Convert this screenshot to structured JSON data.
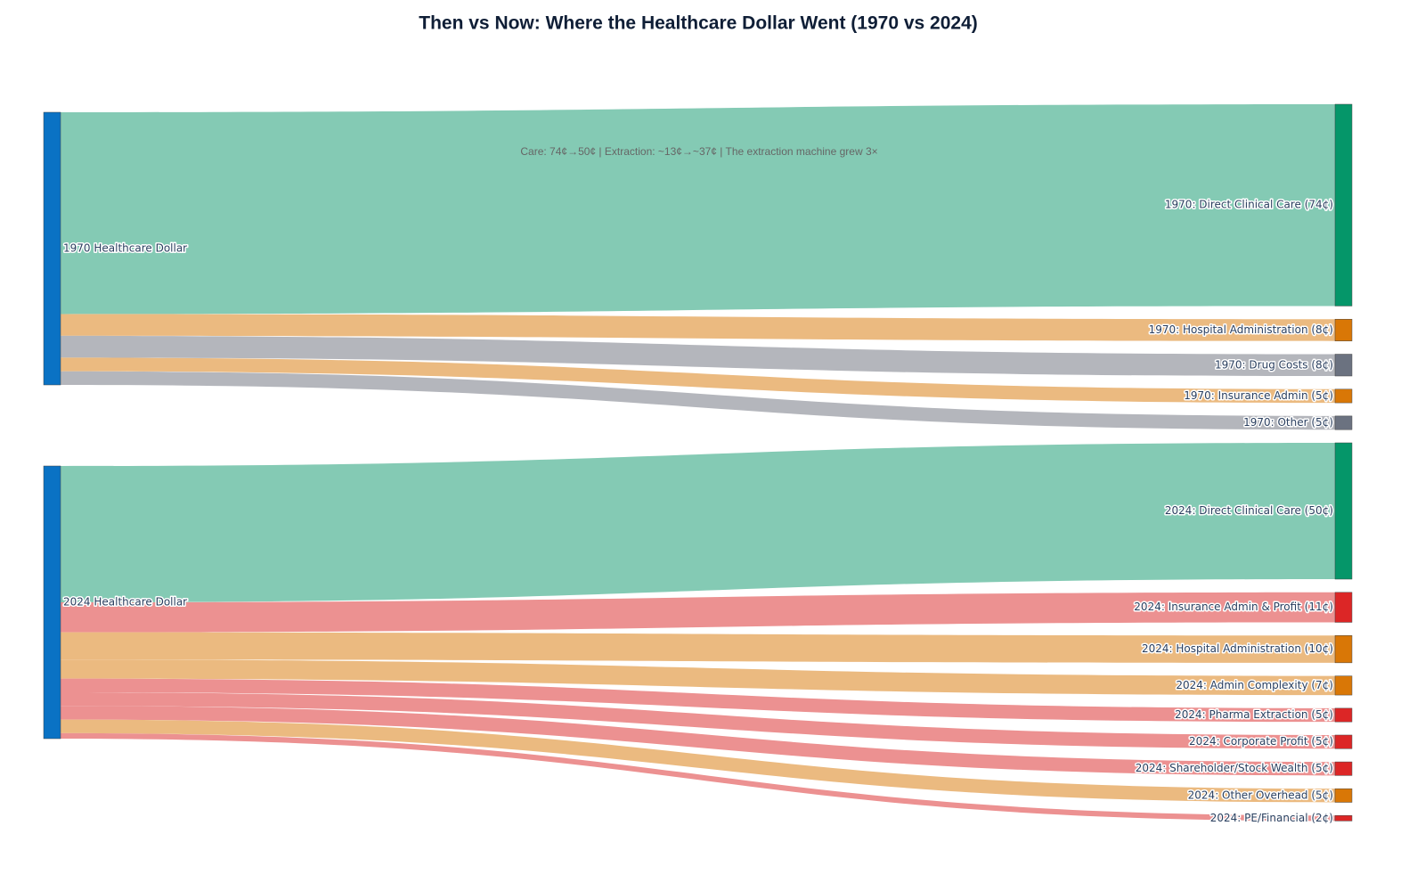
{
  "chart_data": {
    "type": "sankey",
    "title": "Then vs Now: Where the Healthcare Dollar Went (1970 vs 2024)",
    "annotation": "Care: 74¢→50¢ | Extraction: ~13¢→~37¢ | The extraction machine grew 3×",
    "sources": [
      {
        "label": "1970 Healthcare Dollar",
        "color": "#0a72c4",
        "targets": [
          {
            "label": "1970: Direct Clinical Care (74¢)",
            "value": 74,
            "color": "#059669",
            "link_color": "#84cab4"
          },
          {
            "label": "1970: Hospital Administration (8¢)",
            "value": 8,
            "color": "#d97706",
            "link_color": "#ebba80"
          },
          {
            "label": "1970: Drug Costs (8¢)",
            "value": 8,
            "color": "#6b7280",
            "link_color": "#b4b6bc"
          },
          {
            "label": "1970: Insurance Admin (5¢)",
            "value": 5,
            "color": "#d97706",
            "link_color": "#ebba80"
          },
          {
            "label": "1970: Other (5¢)",
            "value": 5,
            "color": "#6b7280",
            "link_color": "#b4b6bc"
          }
        ]
      },
      {
        "label": "2024 Healthcare Dollar",
        "color": "#0a72c4",
        "targets": [
          {
            "label": "2024: Direct Clinical Care (50¢)",
            "value": 50,
            "color": "#059669",
            "link_color": "#84cab4"
          },
          {
            "label": "2024: Insurance Admin & Profit (11¢)",
            "value": 11,
            "color": "#dc2626",
            "link_color": "#ec9191"
          },
          {
            "label": "2024: Hospital Administration (10¢)",
            "value": 10,
            "color": "#d97706",
            "link_color": "#ebba80"
          },
          {
            "label": "2024: Admin Complexity (7¢)",
            "value": 7,
            "color": "#d97706",
            "link_color": "#ebba80"
          },
          {
            "label": "2024: Pharma Extraction (5¢)",
            "value": 5,
            "color": "#dc2626",
            "link_color": "#ec9191"
          },
          {
            "label": "2024: Corporate Profit (5¢)",
            "value": 5,
            "color": "#dc2626",
            "link_color": "#ec9191"
          },
          {
            "label": "2024: Shareholder/Stock Wealth (5¢)",
            "value": 5,
            "color": "#dc2626",
            "link_color": "#ec9191"
          },
          {
            "label": "2024: Other Overhead (5¢)",
            "value": 5,
            "color": "#d97706",
            "link_color": "#ebba80"
          },
          {
            "label": "2024: PE/Financial (2¢)",
            "value": 2,
            "color": "#dc2626",
            "link_color": "#ec9191"
          }
        ]
      }
    ]
  }
}
